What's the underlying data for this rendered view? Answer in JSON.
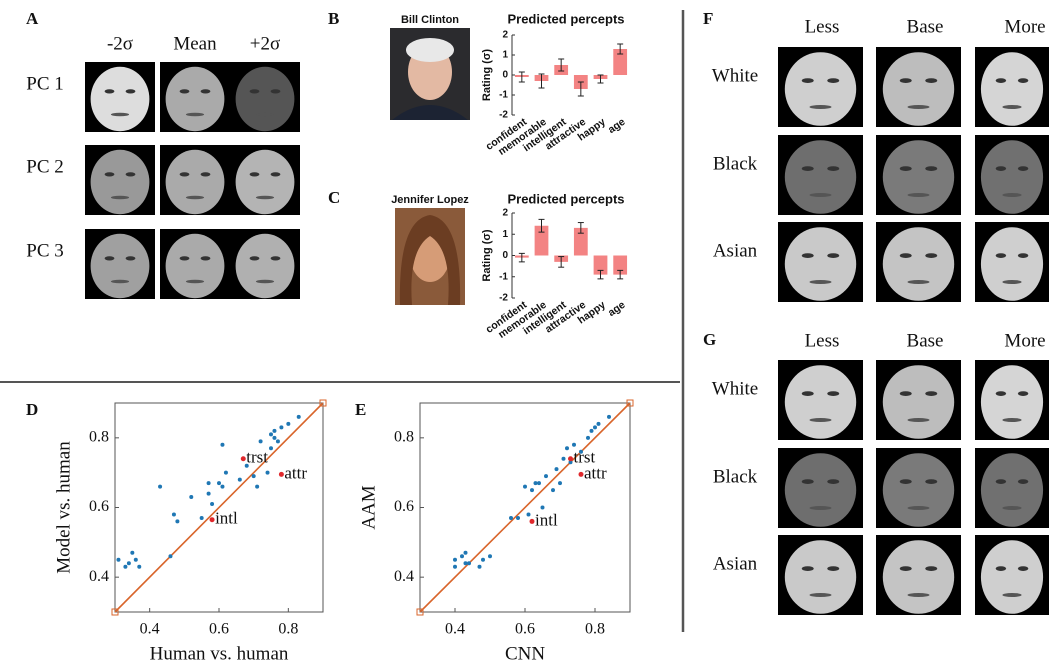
{
  "panels": {
    "A": {
      "label": "A",
      "columns": [
        "-2σ",
        "Mean",
        "+2σ"
      ],
      "rows": [
        "PC 1",
        "PC 2",
        "PC 3"
      ]
    },
    "B": {
      "label": "B",
      "name": "Bill Clinton"
    },
    "C": {
      "label": "C",
      "name": "Jennifer Lopez"
    },
    "D": {
      "label": "D"
    },
    "E": {
      "label": "E"
    },
    "F": {
      "label": "F",
      "columns": [
        "Less",
        "Base",
        "More"
      ],
      "rows": [
        "White",
        "Black",
        "Asian"
      ]
    },
    "G": {
      "label": "G",
      "columns": [
        "Less",
        "Base",
        "More"
      ],
      "rows": [
        "White",
        "Black",
        "Asian"
      ]
    }
  },
  "chart_data": [
    {
      "type": "bar",
      "title": "Predicted percepts",
      "ylabel": "Rating (σ)",
      "categories": [
        "confident",
        "memorable",
        "intelligent",
        "attractive",
        "happy",
        "age"
      ],
      "values": [
        -0.1,
        -0.3,
        0.5,
        -0.7,
        -0.2,
        1.3
      ],
      "errors": [
        0.25,
        0.35,
        0.3,
        0.35,
        0.2,
        0.25
      ],
      "color": "#f38383",
      "ylim": [
        -2,
        2
      ],
      "yticks": [
        -2,
        -1,
        0,
        1,
        2
      ]
    },
    {
      "type": "bar",
      "title": "Predicted percepts",
      "ylabel": "Rating (σ)",
      "categories": [
        "confident",
        "memorable",
        "intelligent",
        "attractive",
        "happy",
        "age"
      ],
      "values": [
        -0.1,
        1.4,
        -0.3,
        1.3,
        -0.9,
        -0.9
      ],
      "errors": [
        0.2,
        0.3,
        0.25,
        0.25,
        0.2,
        0.2
      ],
      "color": "#f38383",
      "ylim": [
        -2,
        2
      ],
      "yticks": [
        -2,
        -1,
        0,
        1,
        2
      ]
    },
    {
      "type": "scatter",
      "xlabel": "Human vs. human",
      "ylabel": "Model vs. human",
      "xlim": [
        0.3,
        0.9
      ],
      "ylim": [
        0.3,
        0.9
      ],
      "xticks": [
        0.4,
        0.6,
        0.8
      ],
      "yticks": [
        0.4,
        0.6,
        0.8
      ],
      "diagonal": true,
      "diagonal_color": "#d9652b",
      "series": [
        {
          "color": "#1f77b4",
          "x": [
            0.31,
            0.33,
            0.35,
            0.36,
            0.37,
            0.34,
            0.43,
            0.46,
            0.47,
            0.48,
            0.52,
            0.55,
            0.57,
            0.57,
            0.58,
            0.6,
            0.61,
            0.61,
            0.62,
            0.66,
            0.68,
            0.7,
            0.71,
            0.72,
            0.74,
            0.75,
            0.75,
            0.76,
            0.76,
            0.77,
            0.78,
            0.8,
            0.83
          ],
          "y": [
            0.45,
            0.43,
            0.47,
            0.45,
            0.43,
            0.44,
            0.66,
            0.46,
            0.58,
            0.56,
            0.63,
            0.57,
            0.64,
            0.67,
            0.61,
            0.67,
            0.66,
            0.78,
            0.7,
            0.68,
            0.72,
            0.69,
            0.66,
            0.79,
            0.7,
            0.77,
            0.81,
            0.8,
            0.82,
            0.79,
            0.83,
            0.84,
            0.86
          ]
        },
        {
          "color": "#e0282c",
          "x": [
            0.67,
            0.78,
            0.58
          ],
          "y": [
            0.74,
            0.695,
            0.565
          ],
          "point_labels": [
            "trst",
            "attr",
            "intl"
          ]
        }
      ]
    },
    {
      "type": "scatter",
      "xlabel": "CNN",
      "ylabel": "AAM",
      "xlim": [
        0.3,
        0.9
      ],
      "ylim": [
        0.3,
        0.9
      ],
      "xticks": [
        0.4,
        0.6,
        0.8
      ],
      "yticks": [
        0.4,
        0.6,
        0.8
      ],
      "diagonal": true,
      "diagonal_color": "#d9652b",
      "series": [
        {
          "color": "#1f77b4",
          "x": [
            0.4,
            0.4,
            0.42,
            0.43,
            0.43,
            0.44,
            0.47,
            0.48,
            0.5,
            0.56,
            0.58,
            0.6,
            0.61,
            0.62,
            0.63,
            0.64,
            0.65,
            0.66,
            0.68,
            0.69,
            0.7,
            0.71,
            0.72,
            0.73,
            0.74,
            0.76,
            0.78,
            0.79,
            0.8,
            0.81,
            0.84
          ],
          "y": [
            0.43,
            0.45,
            0.46,
            0.47,
            0.44,
            0.44,
            0.43,
            0.45,
            0.46,
            0.57,
            0.57,
            0.66,
            0.58,
            0.65,
            0.67,
            0.67,
            0.6,
            0.69,
            0.65,
            0.71,
            0.67,
            0.74,
            0.77,
            0.73,
            0.78,
            0.76,
            0.8,
            0.82,
            0.83,
            0.84,
            0.86
          ]
        },
        {
          "color": "#e0282c",
          "x": [
            0.73,
            0.76,
            0.62
          ],
          "y": [
            0.74,
            0.695,
            0.56
          ],
          "point_labels": [
            "trst",
            "attr",
            "intl"
          ]
        }
      ]
    }
  ]
}
